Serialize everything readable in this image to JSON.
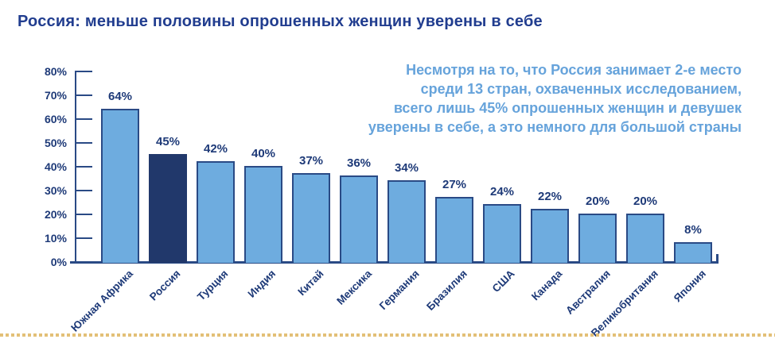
{
  "title": "Россия: меньше половины опрошенных женщин уверены в себе",
  "annotation": {
    "lines": [
      "Несмотря на то, что Россия занимает 2-е место",
      "среди 13 стран, охваченных исследованием,",
      "всего лишь 45% опрошенных женщин и девушек",
      "уверены в себе, а это немного для большой страны"
    ]
  },
  "chart_data": {
    "type": "bar",
    "categories": [
      "Южная Африка",
      "Россия",
      "Турция",
      "Индия",
      "Китай",
      "Мексика",
      "Германия",
      "Бразилия",
      "США",
      "Канада",
      "Австралия",
      "Великобритания",
      "Япония"
    ],
    "values": [
      64,
      45,
      42,
      40,
      37,
      36,
      34,
      27,
      24,
      22,
      20,
      20,
      8
    ],
    "value_labels": [
      "64%",
      "45%",
      "42%",
      "40%",
      "37%",
      "36%",
      "34%",
      "27%",
      "24%",
      "22%",
      "20%",
      "20%",
      "8%"
    ],
    "highlight_index": 1,
    "highlight_category": "Россия",
    "title": "",
    "xlabel": "",
    "ylabel": "",
    "ylim": [
      0,
      80
    ],
    "ytick_labels": [
      "80%",
      "70%",
      "60%",
      "50%",
      "40%",
      "30%",
      "20%",
      "10%",
      "0%"
    ],
    "ytick_values": [
      80,
      70,
      60,
      50,
      40,
      30,
      20,
      10,
      0
    ],
    "grid": false,
    "legend": "none"
  },
  "colors": {
    "title_text": "#213D8F",
    "label_text": "#1E3A78",
    "annotation_text": "#66A3DB",
    "axis": "#2A4A85",
    "bar_fill": "#6EACDF",
    "bar_border": "#2A4A85",
    "highlight_fill": "#21386B",
    "dotted_line": "#E3C077"
  }
}
